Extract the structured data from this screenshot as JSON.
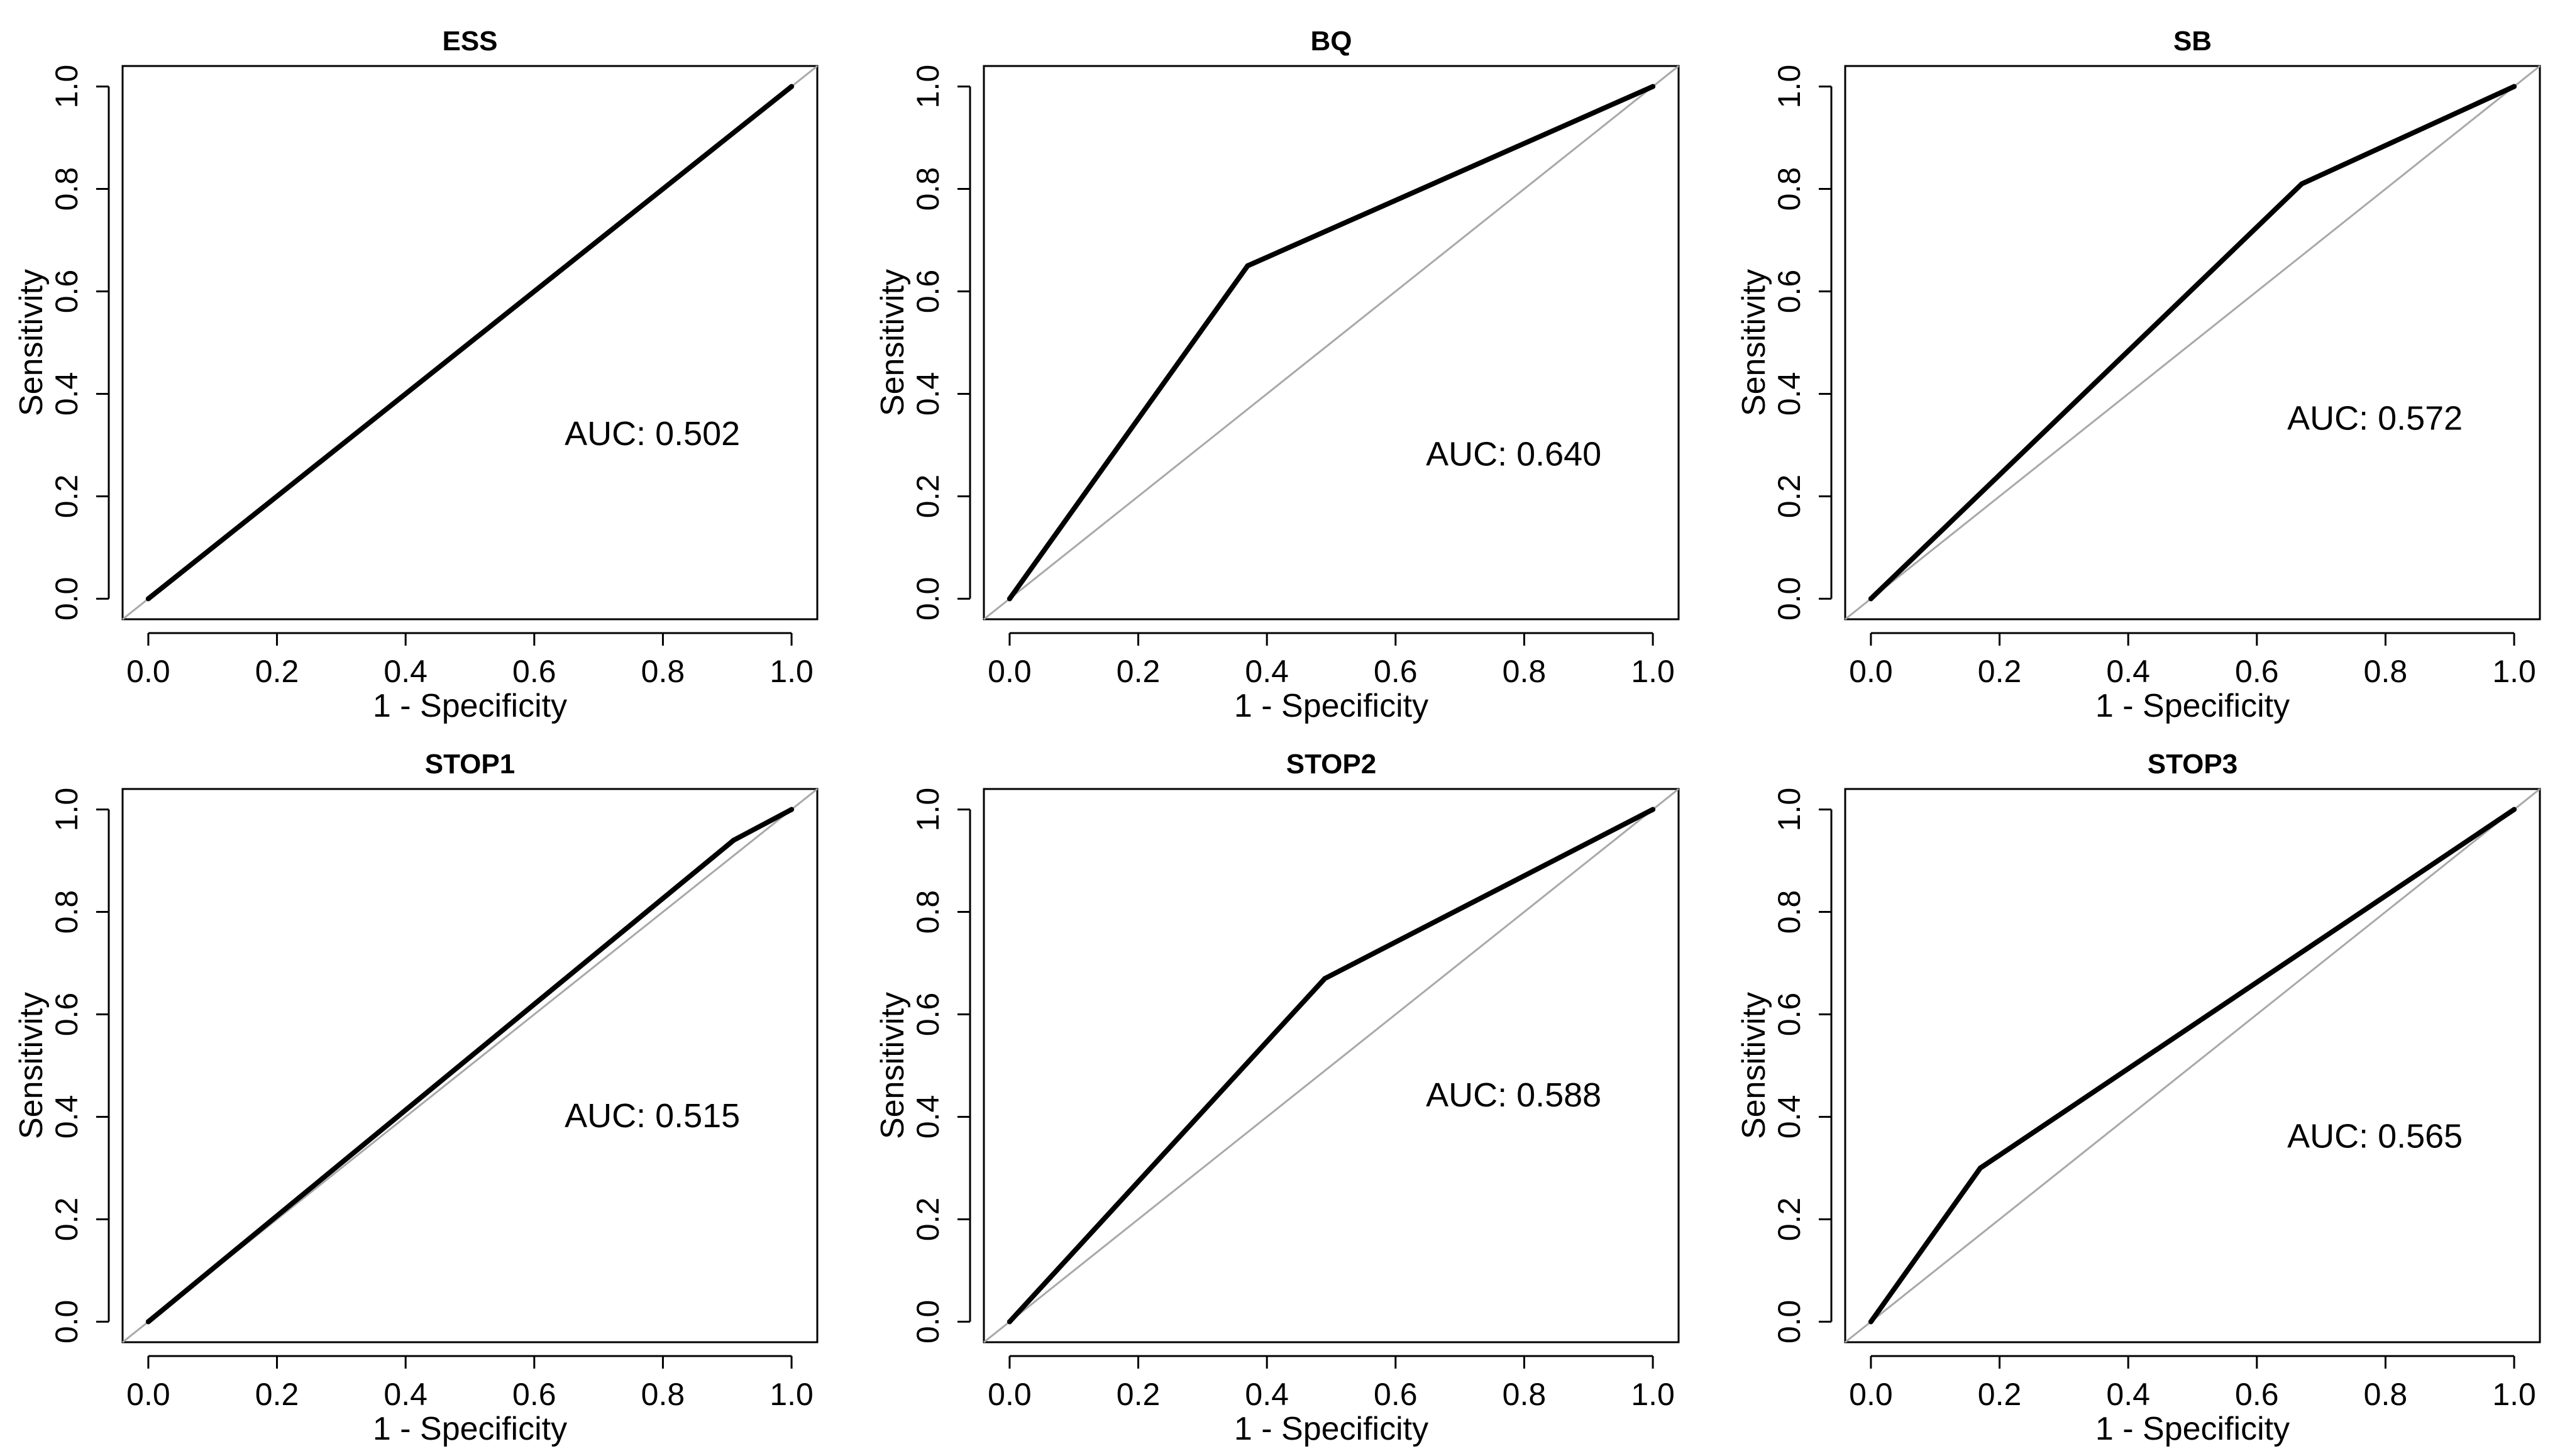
{
  "figure": {
    "xlabel": "1 - Specificity",
    "ylabel": "Sensitivity",
    "tick_values": [
      0.0,
      0.2,
      0.4,
      0.6,
      0.8,
      1.0
    ],
    "tick_labels": [
      "0.0",
      "0.2",
      "0.4",
      "0.6",
      "0.8",
      "1.0"
    ]
  },
  "chart_data": [
    {
      "type": "line",
      "title": "ESS",
      "xlabel": "1 - Specificity",
      "ylabel": "Sensitivity",
      "xlim": [
        0,
        1
      ],
      "ylim": [
        0,
        1
      ],
      "annotation": "AUC: 0.502",
      "series": [
        {
          "name": "ROC",
          "x": [
            0.0,
            1.0
          ],
          "y": [
            0.0,
            1.0
          ]
        },
        {
          "name": "reference",
          "x": [
            0.0,
            1.0
          ],
          "y": [
            0.0,
            1.0
          ]
        }
      ]
    },
    {
      "type": "line",
      "title": "BQ",
      "xlabel": "1 - Specificity",
      "ylabel": "Sensitivity",
      "xlim": [
        0,
        1
      ],
      "ylim": [
        0,
        1
      ],
      "annotation": "AUC: 0.640",
      "series": [
        {
          "name": "ROC",
          "x": [
            0.0,
            0.37,
            1.0
          ],
          "y": [
            0.0,
            0.65,
            1.0
          ]
        },
        {
          "name": "reference",
          "x": [
            0.0,
            1.0
          ],
          "y": [
            0.0,
            1.0
          ]
        }
      ]
    },
    {
      "type": "line",
      "title": "SB",
      "xlabel": "1 - Specificity",
      "ylabel": "Sensitivity",
      "xlim": [
        0,
        1
      ],
      "ylim": [
        0,
        1
      ],
      "annotation": "AUC: 0.572",
      "series": [
        {
          "name": "ROC",
          "x": [
            0.0,
            0.67,
            1.0
          ],
          "y": [
            0.0,
            0.81,
            1.0
          ]
        },
        {
          "name": "reference",
          "x": [
            0.0,
            1.0
          ],
          "y": [
            0.0,
            1.0
          ]
        }
      ]
    },
    {
      "type": "line",
      "title": "STOP1",
      "xlabel": "1 - Specificity",
      "ylabel": "Sensitivity",
      "xlim": [
        0,
        1
      ],
      "ylim": [
        0,
        1
      ],
      "annotation": "AUC: 0.515",
      "series": [
        {
          "name": "ROC",
          "x": [
            0.0,
            0.91,
            1.0
          ],
          "y": [
            0.0,
            0.94,
            1.0
          ]
        },
        {
          "name": "reference",
          "x": [
            0.0,
            1.0
          ],
          "y": [
            0.0,
            1.0
          ]
        }
      ]
    },
    {
      "type": "line",
      "title": "STOP2",
      "xlabel": "1 - Specificity",
      "ylabel": "Sensitivity",
      "xlim": [
        0,
        1
      ],
      "ylim": [
        0,
        1
      ],
      "annotation": "AUC: 0.588",
      "series": [
        {
          "name": "ROC",
          "x": [
            0.0,
            0.49,
            1.0
          ],
          "y": [
            0.0,
            0.67,
            1.0
          ]
        },
        {
          "name": "reference",
          "x": [
            0.0,
            1.0
          ],
          "y": [
            0.0,
            1.0
          ]
        }
      ]
    },
    {
      "type": "line",
      "title": "STOP3",
      "xlabel": "1 - Specificity",
      "ylabel": "Sensitivity",
      "xlim": [
        0,
        1
      ],
      "ylim": [
        0,
        1
      ],
      "annotation": "AUC: 0.565",
      "series": [
        {
          "name": "ROC",
          "x": [
            0.0,
            0.17,
            1.0
          ],
          "y": [
            0.0,
            0.3,
            1.0
          ]
        },
        {
          "name": "reference",
          "x": [
            0.0,
            1.0
          ],
          "y": [
            0.0,
            1.0
          ]
        }
      ]
    }
  ]
}
